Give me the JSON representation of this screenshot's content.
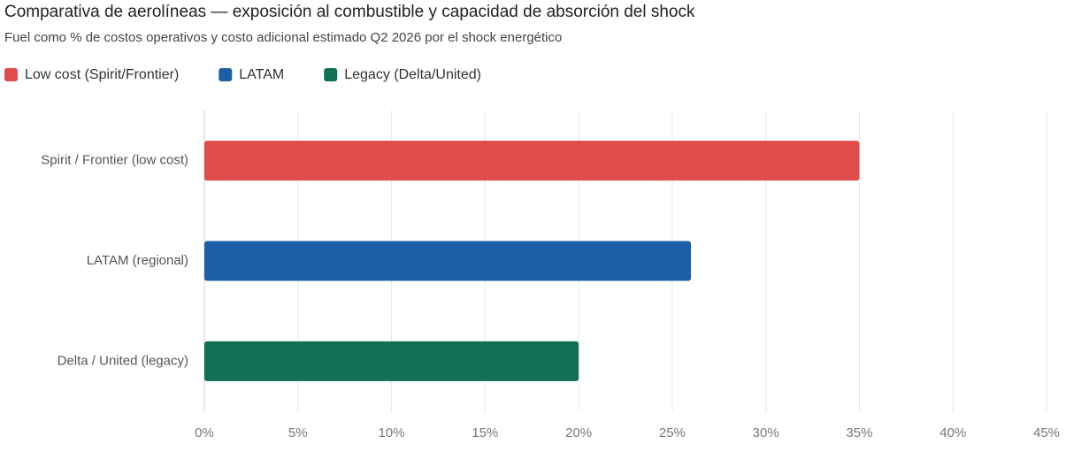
{
  "chart_data": {
    "type": "hbar",
    "title": "Comparativa de aerolíneas — exposición al combustible y capacidad de absorción del shock",
    "subtitle": "Fuel como % de costos operativos y costo adicional estimado Q2 2026 por el shock energético",
    "categories": [
      "Spirit / Frontier (low cost)",
      "LATAM (regional)",
      "Delta / United (legacy)"
    ],
    "series": [
      {
        "name": "Low cost (Spirit/Frontier)",
        "color": "#e04b4b",
        "values": [
          35,
          null,
          null
        ]
      },
      {
        "name": "LATAM",
        "color": "#1a5fa8",
        "values": [
          null,
          26,
          null
        ]
      },
      {
        "name": "Legacy (Delta/United)",
        "color": "#117055",
        "values": [
          null,
          null,
          20
        ]
      }
    ],
    "xlim": [
      0,
      45
    ],
    "xticks": [
      {
        "value": 0,
        "label": "0%"
      },
      {
        "value": 5,
        "label": "5%"
      },
      {
        "value": 10,
        "label": "10%"
      },
      {
        "value": 15,
        "label": "15%"
      },
      {
        "value": 20,
        "label": "20%"
      },
      {
        "value": 25,
        "label": "25%"
      },
      {
        "value": 30,
        "label": "30%"
      },
      {
        "value": 35,
        "label": "35%"
      },
      {
        "value": 40,
        "label": "40%"
      },
      {
        "value": 45,
        "label": "45%"
      }
    ],
    "grid": true,
    "legend": "top-left"
  }
}
